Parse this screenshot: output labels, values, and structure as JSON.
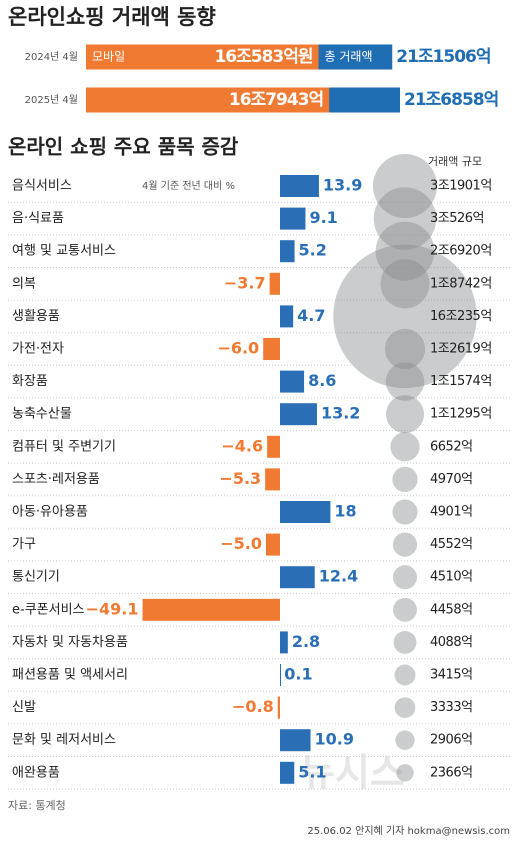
{
  "chart_data": [
    {
      "type": "overlap-bar",
      "title": "온라인쇼핑 거래액 동향",
      "categories": [
        "2024년 4월",
        "2025년 4월"
      ],
      "series": [
        {
          "name": "총 거래액",
          "color": "#1f6db3",
          "values": [
            211506,
            216858
          ],
          "value_labels": [
            "21조1506억",
            "21조6858억"
          ]
        },
        {
          "name": "모바일",
          "color": "#f07a32",
          "values": [
            160583,
            167943
          ],
          "value_labels": [
            "16조583억원",
            "16조7943억"
          ]
        }
      ]
    },
    {
      "type": "bar-bubble",
      "title": "온라인 쇼핑 주요 품목 증감",
      "subtitle": "4월 기준 전년 대비 %",
      "categories": [
        "음식서비스",
        "음·식료품",
        "여행 및 교통서비스",
        "의복",
        "생활용품",
        "가전·전자",
        "화장품",
        "농축수산물",
        "컴퓨터 및 주변기기",
        "스포츠·레저용품",
        "아동·유아용품",
        "가구",
        "통신기기",
        "e-쿠폰서비스",
        "자동차 및 자동차용품",
        "패션용품 및 액세서리",
        "신발",
        "문화 및 레저서비스",
        "애완용품"
      ],
      "values": [
        13.9,
        9.1,
        5.2,
        -3.7,
        4.7,
        -6.0,
        8.6,
        13.2,
        -4.6,
        -5.3,
        18,
        -5.0,
        12.4,
        -49.1,
        2.8,
        0.1,
        -0.8,
        10.9,
        5.1
      ],
      "value_labels": [
        "13.9",
        "9.1",
        "5.2",
        "−3.7",
        "4.7",
        "−6.0",
        "8.6",
        "13.2",
        "−4.6",
        "−5.3",
        "18",
        "−5.0",
        "12.4",
        "−49.1",
        "2.8",
        "0.1",
        "−0.8",
        "10.9",
        "5.1"
      ],
      "positive_color": "#2a6fb5",
      "negative_color": "#f07a32",
      "size_title": "거래액 규모",
      "sizes": [
        31901,
        30526,
        26920,
        18742,
        160235,
        12619,
        11574,
        11295,
        6652,
        4970,
        4901,
        4552,
        4510,
        4458,
        4088,
        3415,
        3333,
        2906,
        2366
      ],
      "size_labels": [
        "3조1901억",
        "3조526억",
        "2조6920억",
        "1조8742억",
        "16조235억",
        "1조2619억",
        "1조1574억",
        "1조1295억",
        "6652억",
        "4970억",
        "4901억",
        "4552억",
        "4510억",
        "4458억",
        "4088억",
        "3415억",
        "3333억",
        "2906억",
        "2366억"
      ],
      "bubble_color": "#8a8d91"
    }
  ],
  "source": "자료: 통계청",
  "credit": "25.06.02 안지혜 기자 hokma@newsis.com",
  "watermark": "뉴시스"
}
